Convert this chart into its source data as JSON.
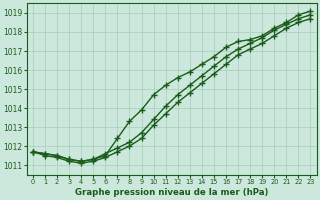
{
  "title": "Graphe pression niveau de la mer (hPa)",
  "label_color": "#1a5c1a",
  "bg_color": "#cce8dd",
  "grid_color": "#a8ccbb",
  "line_color": "#1a5c1a",
  "marker": "+",
  "marker_size": 4,
  "linewidth": 1.0,
  "xlim_min": -0.5,
  "xlim_max": 23.5,
  "ylim_min": 1010.5,
  "ylim_max": 1019.5,
  "yticks": [
    1011,
    1012,
    1013,
    1014,
    1015,
    1016,
    1017,
    1018,
    1019
  ],
  "xticks": [
    0,
    1,
    2,
    3,
    4,
    5,
    6,
    7,
    8,
    9,
    10,
    11,
    12,
    13,
    14,
    15,
    16,
    17,
    18,
    19,
    20,
    21,
    22,
    23
  ],
  "line1_x": [
    0,
    1,
    2,
    3,
    4,
    5,
    6,
    7,
    8,
    9,
    10,
    11,
    12,
    13,
    14,
    15,
    16,
    17,
    18,
    19,
    20,
    21,
    22,
    23
  ],
  "line1_y": [
    1011.7,
    1011.6,
    1011.5,
    1011.3,
    1011.2,
    1011.3,
    1011.5,
    1012.4,
    1013.3,
    1013.9,
    1014.7,
    1015.2,
    1015.6,
    1015.9,
    1016.3,
    1016.7,
    1017.2,
    1017.5,
    1017.6,
    1017.8,
    1018.2,
    1018.5,
    1018.9,
    1019.1
  ],
  "line2_x": [
    0,
    1,
    2,
    3,
    4,
    5,
    6,
    7,
    8,
    9,
    10,
    11,
    12,
    13,
    14,
    15,
    16,
    17,
    18,
    19,
    20,
    21,
    22,
    23
  ],
  "line2_y": [
    1011.7,
    1011.6,
    1011.5,
    1011.3,
    1011.2,
    1011.3,
    1011.6,
    1011.9,
    1012.2,
    1012.7,
    1013.4,
    1014.1,
    1014.7,
    1015.2,
    1015.7,
    1016.2,
    1016.7,
    1017.1,
    1017.4,
    1017.7,
    1018.1,
    1018.4,
    1018.7,
    1018.9
  ],
  "line3_x": [
    0,
    1,
    2,
    3,
    4,
    5,
    6,
    7,
    8,
    9,
    10,
    11,
    12,
    13,
    14,
    15,
    16,
    17,
    18,
    19,
    20,
    21,
    22,
    23
  ],
  "line3_y": [
    1011.7,
    1011.5,
    1011.4,
    1011.2,
    1011.1,
    1011.2,
    1011.4,
    1011.7,
    1012.0,
    1012.4,
    1013.1,
    1013.7,
    1014.3,
    1014.8,
    1015.3,
    1015.8,
    1016.3,
    1016.8,
    1017.1,
    1017.4,
    1017.8,
    1018.2,
    1018.5,
    1018.7
  ]
}
